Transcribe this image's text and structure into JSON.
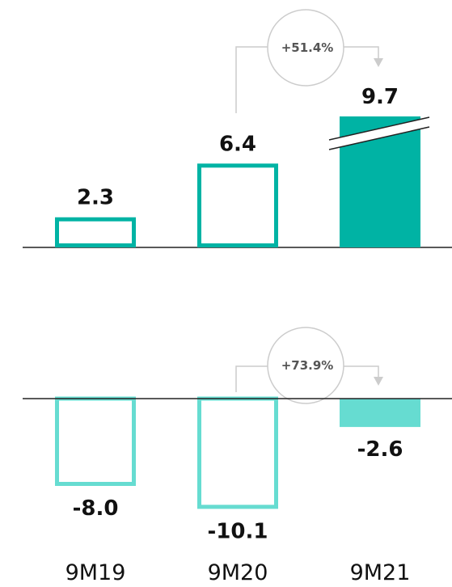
{
  "chart_data": [
    {
      "type": "bar",
      "categories": [
        "9M19",
        "9M20",
        "9M21"
      ],
      "values": [
        2.3,
        6.4,
        9.7
      ],
      "value_labels": [
        "2.3",
        "6.4",
        "9.7"
      ],
      "bar_styles": [
        "outline",
        "outline",
        "filled-with-axis-break"
      ],
      "color": "#00B3A4",
      "growth_annotation": {
        "from": "9M20",
        "to": "9M21",
        "label": "+51.4%"
      }
    },
    {
      "type": "bar",
      "categories": [
        "9M19",
        "9M20",
        "9M21"
      ],
      "values": [
        -8.0,
        -10.1,
        -2.6
      ],
      "value_labels": [
        "-8.0",
        "-10.1",
        "-2.6"
      ],
      "bar_styles": [
        "outline",
        "outline",
        "filled"
      ],
      "color": "#66DCD1",
      "growth_annotation": {
        "from": "9M20",
        "to": "9M21",
        "label": "+73.9%"
      }
    }
  ],
  "x_labels": [
    "9M19",
    "9M20",
    "9M21"
  ],
  "colors": {
    "axis": "#222222",
    "connector": "#CCCCCC",
    "text": "#111111",
    "growth_text": "#555555"
  }
}
